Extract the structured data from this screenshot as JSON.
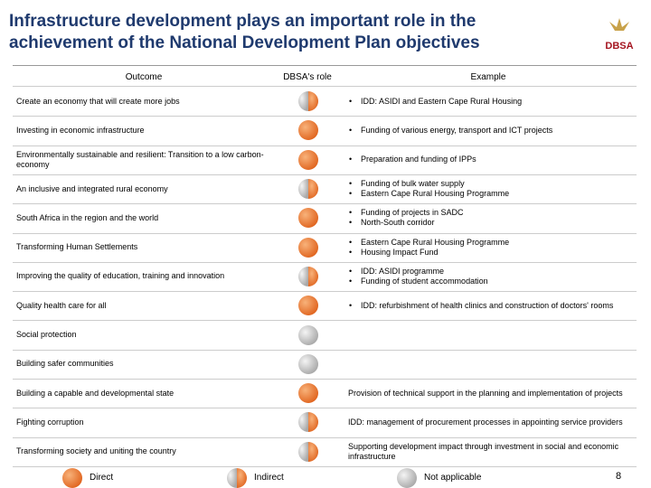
{
  "header": {
    "title": "Infrastructure development plays an important role in the achievement of the National Development Plan objectives",
    "logo": "DBSA"
  },
  "table": {
    "columns": [
      "Outcome",
      "DBSA's role",
      "Example"
    ],
    "rows": [
      {
        "outcome": "Create an economy that will create more jobs",
        "role": "indirect",
        "bullets": [
          "IDD: ASIDI and Eastern Cape Rural Housing"
        ]
      },
      {
        "outcome": "Investing in economic infrastructure",
        "role": "direct",
        "bullets": [
          "Funding of various energy, transport  and ICT projects"
        ]
      },
      {
        "outcome": "Environmentally sustainable and resilient: Transition to a low carbon-economy",
        "role": "direct",
        "bullets": [
          "Preparation and funding of IPPs"
        ]
      },
      {
        "outcome": "An inclusive and integrated rural economy",
        "role": "indirect",
        "bullets": [
          "Funding of bulk water supply",
          "Eastern Cape  Rural Housing Programme"
        ]
      },
      {
        "outcome": "South Africa in the region and the world",
        "role": "direct",
        "bullets": [
          "Funding of projects in SADC",
          "North-South corridor"
        ]
      },
      {
        "outcome": "Transforming Human Settlements",
        "role": "direct",
        "bullets": [
          "Eastern Cape Rural Housing Programme",
          "Housing Impact Fund"
        ]
      },
      {
        "outcome": "Improving the quality of education, training and innovation",
        "role": "indirect",
        "bullets": [
          "IDD: ASIDI programme",
          "Funding of  student accommodation"
        ]
      },
      {
        "outcome": "Quality health care for all",
        "role": "direct",
        "bullets": [
          "IDD: refurbishment of health clinics and construction of doctors' rooms"
        ]
      },
      {
        "outcome": "Social protection",
        "role": "na"
      },
      {
        "outcome": "Building safer communities",
        "role": "na"
      },
      {
        "outcome": "Building a capable and developmental state",
        "role": "direct",
        "text": "Provision of technical support in the planning and implementation of projects"
      },
      {
        "outcome": "Fighting corruption",
        "role": "indirect",
        "text": "IDD: management of procurement processes in appointing service providers"
      },
      {
        "outcome": "Transforming society and uniting the country",
        "role": "indirect",
        "text": "Supporting development impact through investment in social and economic infrastructure"
      }
    ]
  },
  "legend": [
    {
      "role": "direct",
      "label": "Direct"
    },
    {
      "role": "indirect",
      "label": "Indirect"
    },
    {
      "role": "na",
      "label": "Not applicable"
    }
  ],
  "page_number": "8"
}
